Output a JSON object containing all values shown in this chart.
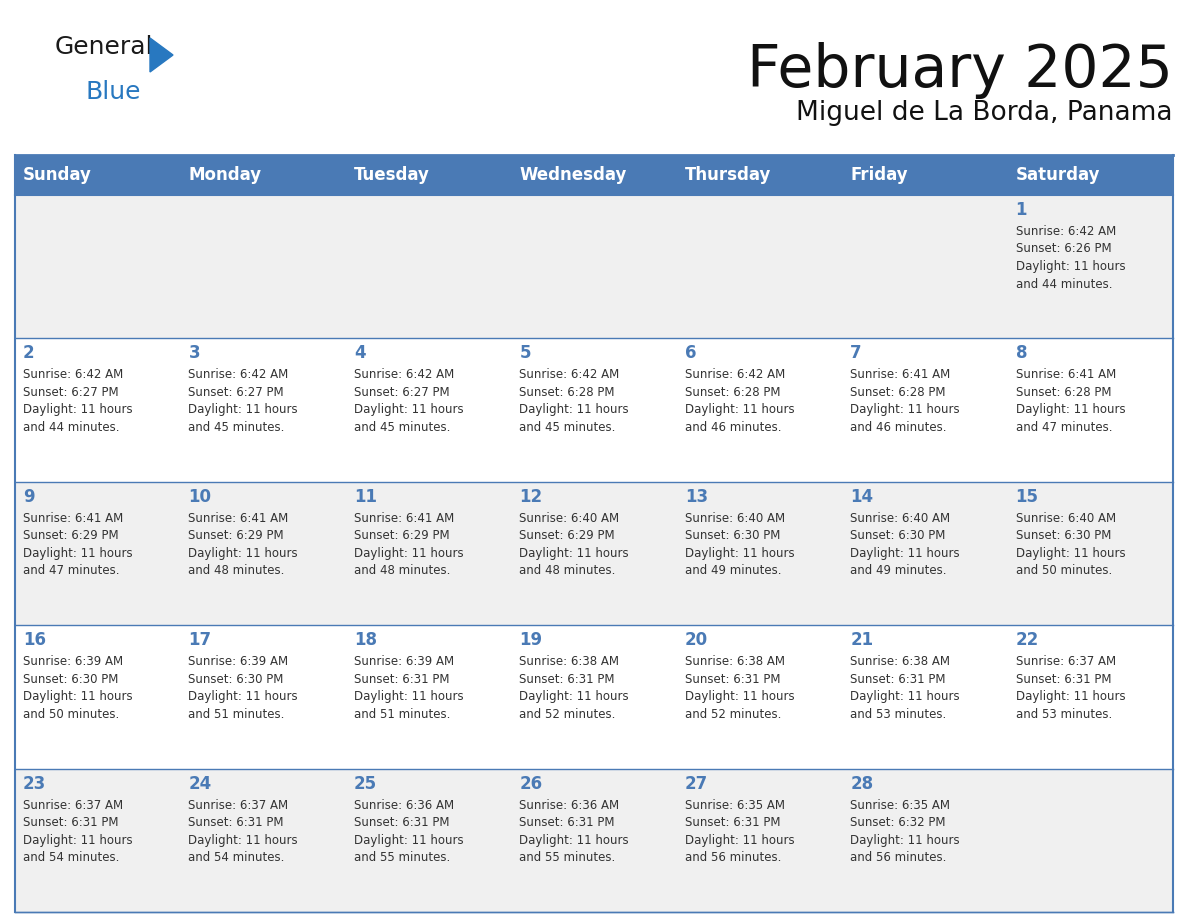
{
  "title": "February 2025",
  "subtitle": "Miguel de La Borda, Panama",
  "header_color": "#4a7ab5",
  "header_text_color": "#ffffff",
  "day_names": [
    "Sunday",
    "Monday",
    "Tuesday",
    "Wednesday",
    "Thursday",
    "Friday",
    "Saturday"
  ],
  "background_color": "#ffffff",
  "cell_bg_odd": "#f0f0f0",
  "cell_bg_even": "#ffffff",
  "border_color": "#4a7ab5",
  "date_color": "#4a7ab5",
  "text_color": "#333333",
  "logo_general_color": "#1a1a1a",
  "logo_blue_color": "#2878c0",
  "days": [
    {
      "date": 1,
      "col": 6,
      "row": 0,
      "sunrise": "6:42 AM",
      "sunset": "6:26 PM",
      "daylight": "11 hours and 44 minutes"
    },
    {
      "date": 2,
      "col": 0,
      "row": 1,
      "sunrise": "6:42 AM",
      "sunset": "6:27 PM",
      "daylight": "11 hours and 44 minutes"
    },
    {
      "date": 3,
      "col": 1,
      "row": 1,
      "sunrise": "6:42 AM",
      "sunset": "6:27 PM",
      "daylight": "11 hours and 45 minutes"
    },
    {
      "date": 4,
      "col": 2,
      "row": 1,
      "sunrise": "6:42 AM",
      "sunset": "6:27 PM",
      "daylight": "11 hours and 45 minutes"
    },
    {
      "date": 5,
      "col": 3,
      "row": 1,
      "sunrise": "6:42 AM",
      "sunset": "6:28 PM",
      "daylight": "11 hours and 45 minutes"
    },
    {
      "date": 6,
      "col": 4,
      "row": 1,
      "sunrise": "6:42 AM",
      "sunset": "6:28 PM",
      "daylight": "11 hours and 46 minutes"
    },
    {
      "date": 7,
      "col": 5,
      "row": 1,
      "sunrise": "6:41 AM",
      "sunset": "6:28 PM",
      "daylight": "11 hours and 46 minutes"
    },
    {
      "date": 8,
      "col": 6,
      "row": 1,
      "sunrise": "6:41 AM",
      "sunset": "6:28 PM",
      "daylight": "11 hours and 47 minutes"
    },
    {
      "date": 9,
      "col": 0,
      "row": 2,
      "sunrise": "6:41 AM",
      "sunset": "6:29 PM",
      "daylight": "11 hours and 47 minutes"
    },
    {
      "date": 10,
      "col": 1,
      "row": 2,
      "sunrise": "6:41 AM",
      "sunset": "6:29 PM",
      "daylight": "11 hours and 48 minutes"
    },
    {
      "date": 11,
      "col": 2,
      "row": 2,
      "sunrise": "6:41 AM",
      "sunset": "6:29 PM",
      "daylight": "11 hours and 48 minutes"
    },
    {
      "date": 12,
      "col": 3,
      "row": 2,
      "sunrise": "6:40 AM",
      "sunset": "6:29 PM",
      "daylight": "11 hours and 48 minutes"
    },
    {
      "date": 13,
      "col": 4,
      "row": 2,
      "sunrise": "6:40 AM",
      "sunset": "6:30 PM",
      "daylight": "11 hours and 49 minutes"
    },
    {
      "date": 14,
      "col": 5,
      "row": 2,
      "sunrise": "6:40 AM",
      "sunset": "6:30 PM",
      "daylight": "11 hours and 49 minutes"
    },
    {
      "date": 15,
      "col": 6,
      "row": 2,
      "sunrise": "6:40 AM",
      "sunset": "6:30 PM",
      "daylight": "11 hours and 50 minutes"
    },
    {
      "date": 16,
      "col": 0,
      "row": 3,
      "sunrise": "6:39 AM",
      "sunset": "6:30 PM",
      "daylight": "11 hours and 50 minutes"
    },
    {
      "date": 17,
      "col": 1,
      "row": 3,
      "sunrise": "6:39 AM",
      "sunset": "6:30 PM",
      "daylight": "11 hours and 51 minutes"
    },
    {
      "date": 18,
      "col": 2,
      "row": 3,
      "sunrise": "6:39 AM",
      "sunset": "6:31 PM",
      "daylight": "11 hours and 51 minutes"
    },
    {
      "date": 19,
      "col": 3,
      "row": 3,
      "sunrise": "6:38 AM",
      "sunset": "6:31 PM",
      "daylight": "11 hours and 52 minutes"
    },
    {
      "date": 20,
      "col": 4,
      "row": 3,
      "sunrise": "6:38 AM",
      "sunset": "6:31 PM",
      "daylight": "11 hours and 52 minutes"
    },
    {
      "date": 21,
      "col": 5,
      "row": 3,
      "sunrise": "6:38 AM",
      "sunset": "6:31 PM",
      "daylight": "11 hours and 53 minutes"
    },
    {
      "date": 22,
      "col": 6,
      "row": 3,
      "sunrise": "6:37 AM",
      "sunset": "6:31 PM",
      "daylight": "11 hours and 53 minutes"
    },
    {
      "date": 23,
      "col": 0,
      "row": 4,
      "sunrise": "6:37 AM",
      "sunset": "6:31 PM",
      "daylight": "11 hours and 54 minutes"
    },
    {
      "date": 24,
      "col": 1,
      "row": 4,
      "sunrise": "6:37 AM",
      "sunset": "6:31 PM",
      "daylight": "11 hours and 54 minutes"
    },
    {
      "date": 25,
      "col": 2,
      "row": 4,
      "sunrise": "6:36 AM",
      "sunset": "6:31 PM",
      "daylight": "11 hours and 55 minutes"
    },
    {
      "date": 26,
      "col": 3,
      "row": 4,
      "sunrise": "6:36 AM",
      "sunset": "6:31 PM",
      "daylight": "11 hours and 55 minutes"
    },
    {
      "date": 27,
      "col": 4,
      "row": 4,
      "sunrise": "6:35 AM",
      "sunset": "6:31 PM",
      "daylight": "11 hours and 56 minutes"
    },
    {
      "date": 28,
      "col": 5,
      "row": 4,
      "sunrise": "6:35 AM",
      "sunset": "6:32 PM",
      "daylight": "11 hours and 56 minutes"
    }
  ]
}
